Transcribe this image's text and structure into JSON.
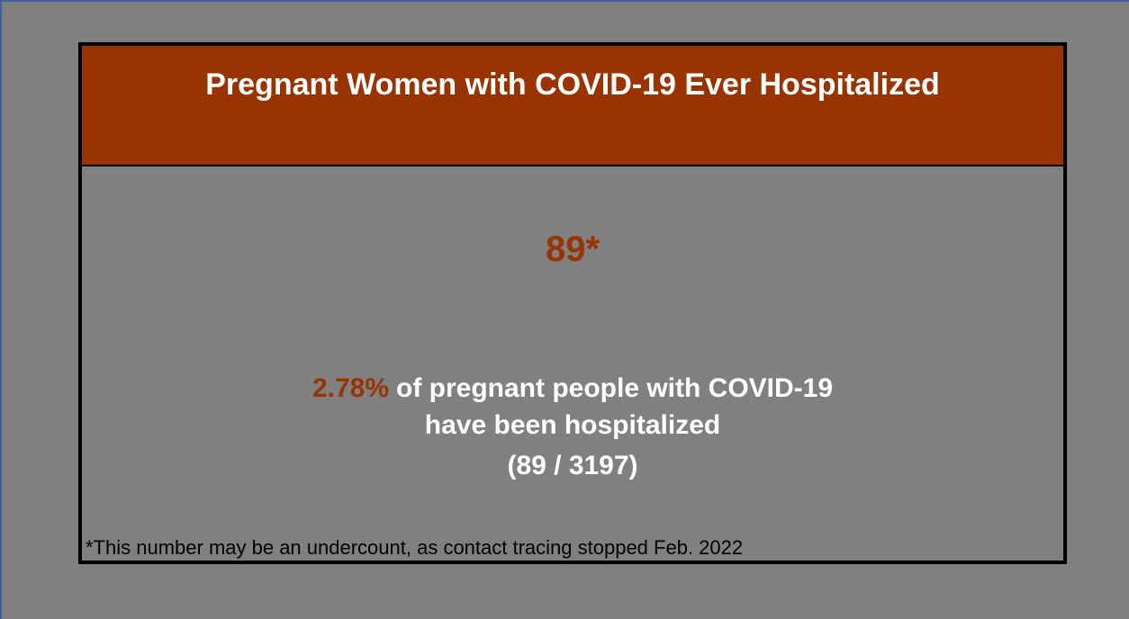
{
  "title": "Pregnant Women with COVID-19 Ever Hospitalized",
  "count": "89*",
  "summary": {
    "percent": "2.78%",
    "line1": "of pregnant people with COVID-19",
    "line2": "have been hospitalized",
    "line3": "(89 / 3197)"
  },
  "footnote": "*This number may be an undercount, as contact tracing stopped Feb. 2022"
}
